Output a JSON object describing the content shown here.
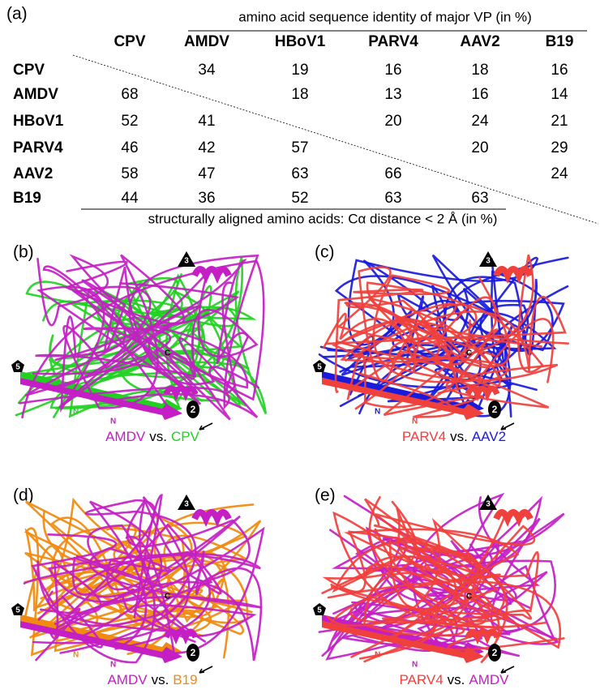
{
  "panel_a": {
    "label": "(a)",
    "top_caption": "amino acid sequence identity of major VP (in %)",
    "bottom_caption": "structurally aligned amino acids: Cα distance < 2 Å (in %)",
    "columns": [
      "CPV",
      "AMDV",
      "HBoV1",
      "PARV4",
      "AAV2",
      "B19"
    ],
    "rows": [
      {
        "name": "CPV",
        "cells": [
          null,
          34,
          19,
          16,
          18,
          16
        ]
      },
      {
        "name": "AMDV",
        "cells": [
          68,
          null,
          18,
          13,
          16,
          14
        ]
      },
      {
        "name": "HBoV1",
        "cells": [
          52,
          41,
          null,
          20,
          24,
          21
        ]
      },
      {
        "name": "PARV4",
        "cells": [
          46,
          42,
          57,
          null,
          20,
          29
        ]
      },
      {
        "name": "AAV2",
        "cells": [
          58,
          47,
          63,
          66,
          null,
          24
        ]
      },
      {
        "name": "B19",
        "cells": [
          44,
          36,
          52,
          63,
          63,
          null
        ]
      }
    ]
  },
  "panels": [
    {
      "label": "(b)",
      "first": "AMDV",
      "first_color": "#c41ec4",
      "vs": "vs.",
      "second": "CPV",
      "second_color": "#22d022",
      "sym3": "3",
      "sym5": "5",
      "sym2": "2",
      "c_label": "C",
      "n_labels": [
        {
          "text": "N",
          "color": "#22d022"
        },
        {
          "text": "N",
          "color": "#c41ec4"
        }
      ]
    },
    {
      "label": "(c)",
      "first": "PARV4",
      "first_color": "#f0403c",
      "vs": "vs.",
      "second": "AAV2",
      "second_color": "#1a1adc",
      "sym3": "3",
      "sym5": "5",
      "sym2": "2",
      "c_label": "C",
      "n_labels": [
        {
          "text": "N",
          "color": "#1a1adc"
        },
        {
          "text": "N",
          "color": "#f0403c"
        }
      ]
    },
    {
      "label": "(d)",
      "first": "AMDV",
      "first_color": "#c41ec4",
      "vs": "vs.",
      "second": "B19",
      "second_color": "#f08a10",
      "sym3": "3",
      "sym5": "5",
      "sym2": "2",
      "c_label": "C",
      "n_labels": [
        {
          "text": "N",
          "color": "#f08a10"
        },
        {
          "text": "N",
          "color": "#c41ec4"
        }
      ]
    },
    {
      "label": "(e)",
      "first": "PARV4",
      "first_color": "#f0403c",
      "vs": "vs.",
      "second": "AMDV",
      "second_color": "#c41ec4",
      "sym3": "3",
      "sym5": "5",
      "sym2": "2",
      "c_label": "C",
      "n_labels": [
        {
          "text": "N",
          "color": "#f0403c"
        },
        {
          "text": "N",
          "color": "#c41ec4"
        }
      ]
    }
  ]
}
